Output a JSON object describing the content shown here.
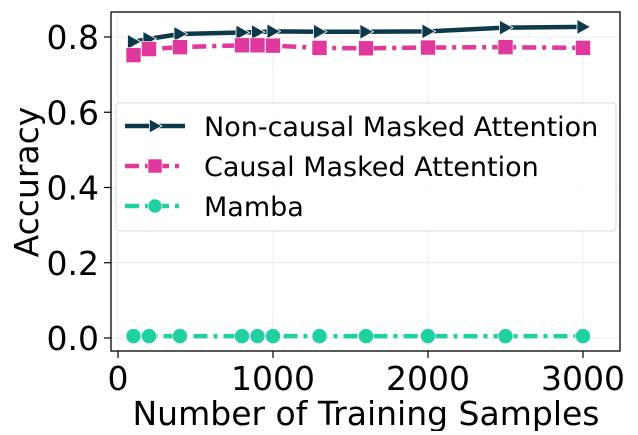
{
  "chart_data": {
    "type": "line",
    "title": "",
    "xlabel": "Number of Training Samples",
    "ylabel": "Accuracy",
    "xlim": [
      -50,
      3150
    ],
    "ylim": [
      -0.03,
      0.87
    ],
    "xticks": [
      0,
      1000,
      2000,
      3000
    ],
    "xtick_labels": [
      "0",
      "1000",
      "2000",
      "3000"
    ],
    "yticks": [
      0.0,
      0.2,
      0.4,
      0.6,
      0.8
    ],
    "ytick_labels": [
      "0.0",
      "0.2",
      "0.4",
      "0.6",
      "0.8"
    ],
    "grid": true,
    "legend_position": "center-left",
    "x": [
      100,
      200,
      400,
      800,
      900,
      1000,
      1300,
      1600,
      2000,
      2500,
      3000
    ],
    "series": [
      {
        "name": "Non-causal Masked Attention",
        "color": "#0d3a4a",
        "marker": "triangle-right",
        "linestyle": "solid",
        "values": [
          0.787,
          0.795,
          0.808,
          0.812,
          0.813,
          0.815,
          0.814,
          0.814,
          0.815,
          0.825,
          0.827
        ]
      },
      {
        "name": "Causal Masked Attention",
        "color": "#e0389c",
        "marker": "square",
        "linestyle": "dashdot",
        "values": [
          0.752,
          0.768,
          0.773,
          0.778,
          0.778,
          0.777,
          0.771,
          0.77,
          0.772,
          0.773,
          0.771
        ]
      },
      {
        "name": "Mamba",
        "color": "#1fd1a0",
        "marker": "circle",
        "linestyle": "dashdot",
        "values": [
          0.005,
          0.005,
          0.005,
          0.005,
          0.005,
          0.005,
          0.005,
          0.005,
          0.005,
          0.005,
          0.005
        ]
      }
    ]
  }
}
